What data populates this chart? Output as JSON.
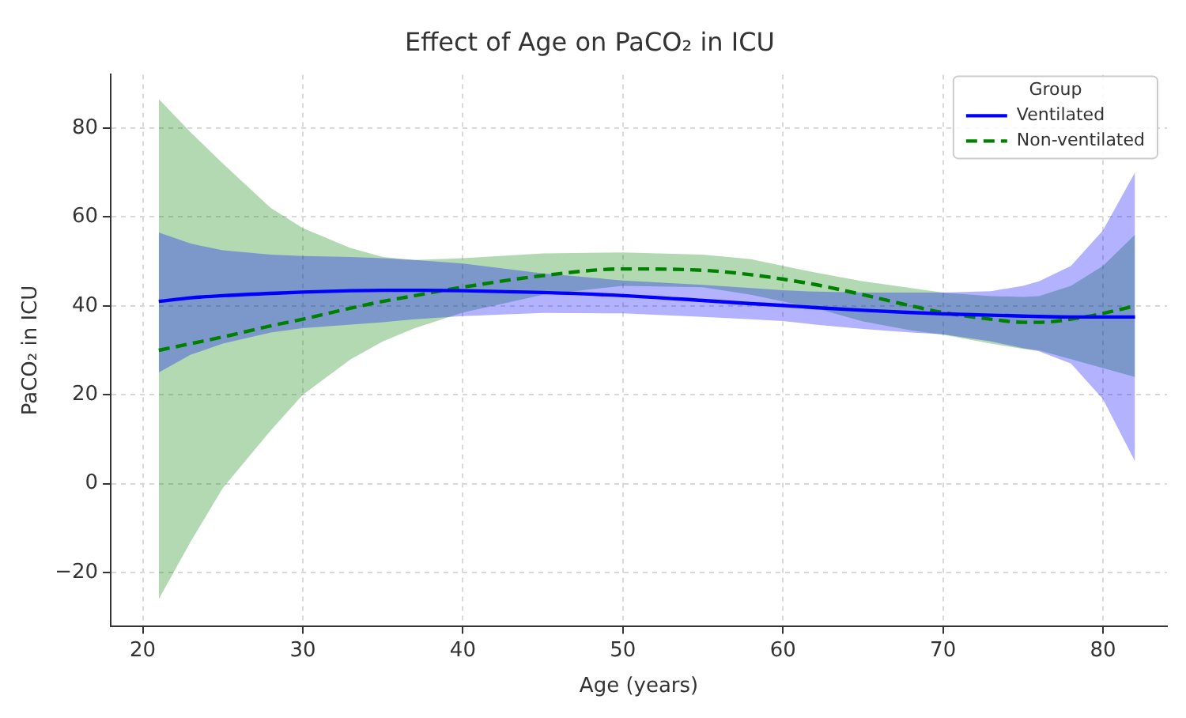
{
  "chart_data": {
    "type": "line",
    "title": "Effect of Age on PaCO₂ in ICU",
    "xlabel": "Age (years)",
    "ylabel": "PaCO₂ in ICU",
    "legend_title": "Group",
    "series": [
      {
        "name": "Ventilated",
        "color": "#0000ff",
        "line_style": "solid",
        "x": [
          21,
          23,
          25,
          28,
          30,
          33,
          35,
          37,
          40,
          45,
          50,
          55,
          58,
          60,
          62,
          65,
          68,
          70,
          73,
          75,
          76,
          78,
          80,
          82
        ],
        "values": [
          41,
          41.8,
          42.3,
          42.8,
          43.1,
          43.4,
          43.5,
          43.5,
          43.4,
          43,
          42.3,
          41.2,
          40.5,
          40.1,
          39.6,
          39,
          38.5,
          38.2,
          37.9,
          37.7,
          37.6,
          37.5,
          37.5,
          37.5
        ],
        "upper": [
          56.5,
          54,
          52.5,
          51.5,
          51.2,
          51,
          50.7,
          50.3,
          49.5,
          47.3,
          45.7,
          44.7,
          44,
          43.5,
          43.2,
          43,
          43,
          43,
          43.3,
          44.5,
          45.5,
          49,
          57,
          70
        ],
        "lower": [
          25,
          29,
          31.5,
          34,
          35,
          35.8,
          36.3,
          37,
          37.7,
          38.4,
          38.3,
          37.5,
          37,
          36.6,
          35.8,
          34.8,
          34,
          33.6,
          32,
          30.5,
          29.8,
          27,
          19,
          5
        ]
      },
      {
        "name": "Non-ventilated",
        "color": "#008000",
        "line_style": "dashed",
        "x": [
          21,
          23,
          25,
          28,
          30,
          33,
          35,
          37,
          40,
          45,
          50,
          55,
          58,
          60,
          62,
          65,
          68,
          70,
          73,
          75,
          76,
          78,
          80,
          82
        ],
        "values": [
          30,
          31.5,
          33,
          35.5,
          37,
          39.5,
          41,
          42.3,
          44.2,
          46.8,
          48.3,
          48,
          47,
          46,
          44.8,
          42.5,
          40,
          38.5,
          37,
          36.3,
          36.3,
          37,
          38.3,
          40
        ],
        "upper": [
          86.5,
          79,
          72,
          62,
          57.5,
          53,
          51,
          50.3,
          50.7,
          51.8,
          52,
          51.5,
          50.5,
          49,
          47.5,
          45.5,
          44,
          43,
          42.2,
          42,
          42.2,
          44.5,
          49,
          56
        ],
        "lower": [
          -26,
          -13,
          -1,
          12,
          20,
          28,
          32,
          35,
          38.5,
          42.5,
          44.5,
          44.2,
          42.5,
          41,
          39.5,
          36.5,
          34.5,
          33.5,
          31.5,
          30.3,
          30,
          28,
          26,
          24
        ]
      }
    ],
    "xlim": [
      18,
      84
    ],
    "xticks": [
      20,
      30,
      40,
      50,
      60,
      70,
      80
    ],
    "ylim": [
      -32,
      92
    ],
    "yticks": [
      {
        "value": -20,
        "label": "−20"
      },
      0,
      20,
      40,
      60,
      80
    ],
    "grid": true,
    "legend": "top right",
    "marker": "none"
  }
}
